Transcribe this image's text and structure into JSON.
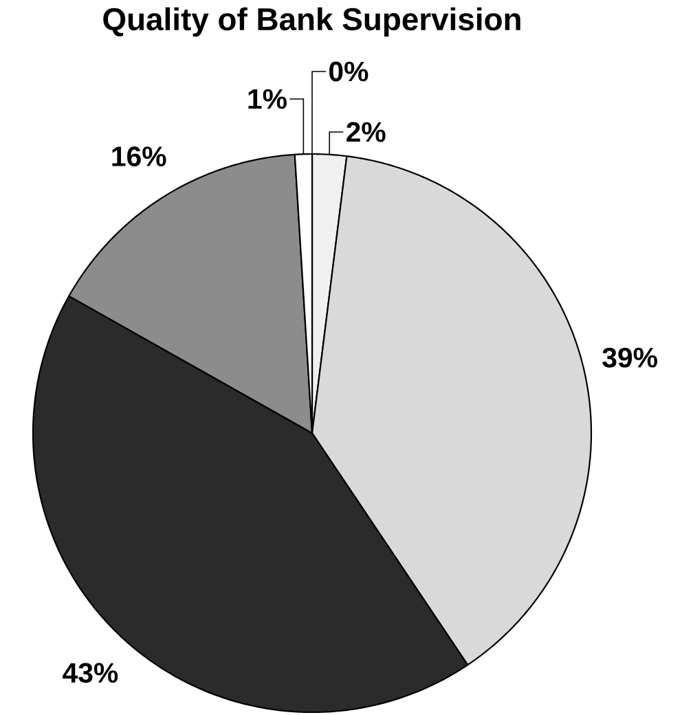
{
  "chart_data": {
    "type": "pie",
    "title": "Quality of Bank Supervision",
    "categories": [
      null,
      null,
      null,
      null,
      null,
      null
    ],
    "values": [
      0,
      2,
      39,
      43,
      16,
      1
    ],
    "colors": [
      "#ffffff",
      "#f0f0f0",
      "#d9d9d9",
      "#2b2b2b",
      "#8c8c8c",
      "#ffffff"
    ],
    "value_labels": [
      "0%",
      "2%",
      "39%",
      "43%",
      "16%",
      "1%"
    ]
  }
}
